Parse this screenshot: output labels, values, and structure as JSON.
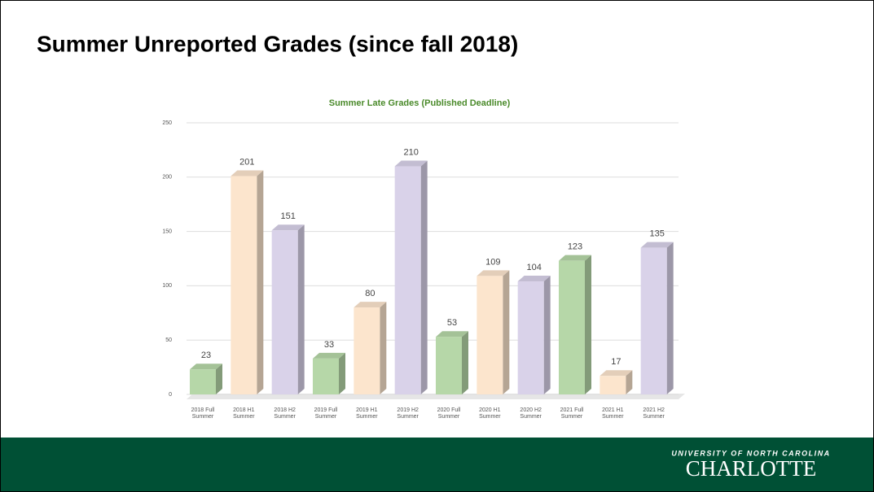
{
  "slide_title": "Summer Unreported Grades (since fall 2018)",
  "footer": {
    "line1": "UNIVERSITY OF NORTH CAROLINA",
    "line2": "CHARLOTTE"
  },
  "chart_data": {
    "type": "bar",
    "title": "Summer Late Grades (Published Deadline)",
    "categories": [
      "2018 Full Summer",
      "2018 H1 Summer",
      "2018 H2 Summer",
      "2019 Full Summer",
      "2019 H1 Summer",
      "2019 H2 Summer",
      "2020 Full Summer",
      "2020 H1 Summer",
      "2020 H2 Summer",
      "2021 Full Summer",
      "2021 H1 Summer",
      "2021 H2 Summer"
    ],
    "values": [
      23,
      201,
      151,
      33,
      80,
      210,
      53,
      109,
      104,
      123,
      17,
      135
    ],
    "colors": [
      "#b6d7a8",
      "#fce5cd",
      "#d9d2e9",
      "#b6d7a8",
      "#fce5cd",
      "#d9d2e9",
      "#b6d7a8",
      "#fce5cd",
      "#d9d2e9",
      "#b6d7a8",
      "#fce5cd",
      "#d9d2e9"
    ],
    "ylim": [
      0,
      250
    ],
    "yticks": [
      0,
      50,
      100,
      150,
      200,
      250
    ],
    "grid": true
  }
}
